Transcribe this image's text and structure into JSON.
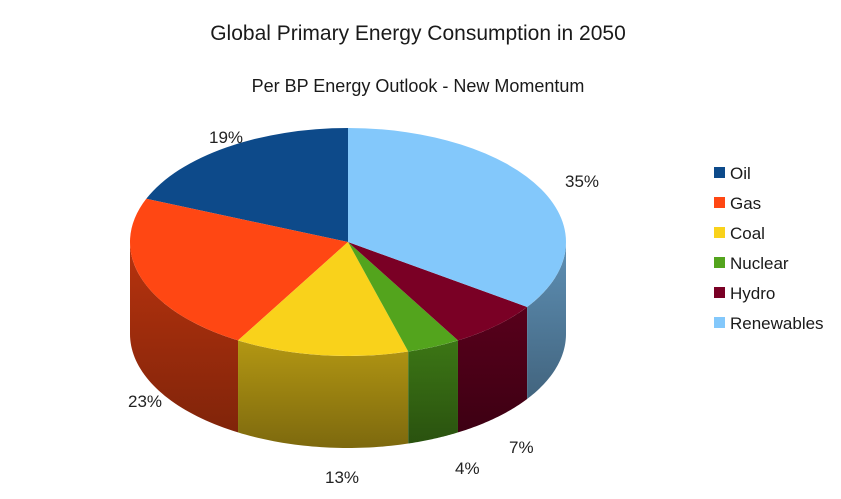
{
  "chart_data": {
    "type": "pie",
    "title": "Global Primary Energy Consumption in 2050",
    "subtitle": "Per BP Energy Outlook - New Momentum",
    "legend_position": "right",
    "series": [
      {
        "name": "Oil",
        "value": 19,
        "label": "19%",
        "color": "#0d4a8a"
      },
      {
        "name": "Gas",
        "value": 23,
        "label": "23%",
        "color": "#ff4713"
      },
      {
        "name": "Coal",
        "value": 13,
        "label": "13%",
        "color": "#f9d21b"
      },
      {
        "name": "Nuclear",
        "value": 4,
        "label": "4%",
        "color": "#53a41d"
      },
      {
        "name": "Hydro",
        "value": 7,
        "label": "7%",
        "color": "#7a0025"
      },
      {
        "name": "Renewables",
        "value": 35,
        "label": "35%",
        "color": "#83c8fb"
      }
    ]
  }
}
